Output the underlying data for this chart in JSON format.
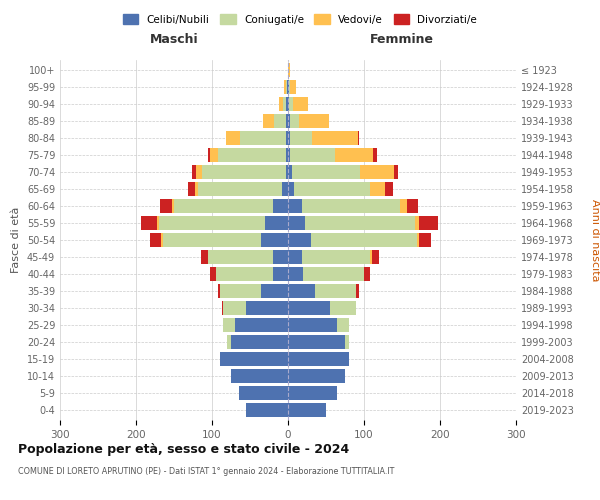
{
  "age_groups": [
    "0-4",
    "5-9",
    "10-14",
    "15-19",
    "20-24",
    "25-29",
    "30-34",
    "35-39",
    "40-44",
    "45-49",
    "50-54",
    "55-59",
    "60-64",
    "65-69",
    "70-74",
    "75-79",
    "80-84",
    "85-89",
    "90-94",
    "95-99",
    "100+"
  ],
  "birth_years": [
    "2019-2023",
    "2014-2018",
    "2009-2013",
    "2004-2008",
    "1999-2003",
    "1994-1998",
    "1989-1993",
    "1984-1988",
    "1979-1983",
    "1974-1978",
    "1969-1973",
    "1964-1968",
    "1959-1963",
    "1954-1958",
    "1949-1953",
    "1944-1948",
    "1939-1943",
    "1934-1938",
    "1929-1933",
    "1924-1928",
    "≤ 1923"
  ],
  "males": {
    "celibi": [
      55,
      65,
      75,
      90,
      75,
      70,
      55,
      35,
      20,
      20,
      35,
      30,
      20,
      8,
      3,
      2,
      3,
      3,
      2,
      1,
      0
    ],
    "coniugati": [
      0,
      0,
      0,
      0,
      5,
      15,
      30,
      55,
      75,
      85,
      130,
      140,
      130,
      110,
      110,
      90,
      60,
      15,
      5,
      2,
      0
    ],
    "vedovi": [
      0,
      0,
      0,
      0,
      0,
      0,
      0,
      0,
      0,
      0,
      2,
      2,
      3,
      5,
      8,
      10,
      18,
      15,
      5,
      2,
      0
    ],
    "divorziati": [
      0,
      0,
      0,
      0,
      0,
      0,
      2,
      2,
      8,
      10,
      15,
      22,
      15,
      8,
      5,
      3,
      0,
      0,
      0,
      0,
      0
    ]
  },
  "females": {
    "nubili": [
      50,
      65,
      75,
      80,
      75,
      65,
      55,
      35,
      20,
      18,
      30,
      22,
      18,
      8,
      5,
      2,
      2,
      2,
      1,
      1,
      0
    ],
    "coniugate": [
      0,
      0,
      0,
      0,
      5,
      15,
      35,
      55,
      80,
      90,
      140,
      145,
      130,
      100,
      90,
      60,
      30,
      12,
      5,
      2,
      0
    ],
    "vedove": [
      0,
      0,
      0,
      0,
      0,
      0,
      0,
      0,
      0,
      2,
      3,
      5,
      8,
      20,
      45,
      50,
      60,
      40,
      20,
      8,
      2
    ],
    "divorziate": [
      0,
      0,
      0,
      0,
      0,
      0,
      0,
      3,
      8,
      10,
      15,
      25,
      15,
      10,
      5,
      5,
      2,
      0,
      0,
      0,
      0
    ]
  },
  "colors": {
    "celibi": "#4e72b0",
    "coniugati": "#c5d9a0",
    "vedovi": "#ffc050",
    "divorziati": "#cc2222"
  },
  "xlim": 300,
  "title": "Popolazione per età, sesso e stato civile - 2024",
  "subtitle": "COMUNE DI LORETO APRUTINO (PE) - Dati ISTAT 1° gennaio 2024 - Elaborazione TUTTITALIA.IT",
  "ylabel": "Fasce di età",
  "ylabel_right": "Anni di nascita",
  "bg_color": "#ffffff",
  "grid_color": "#cccccc",
  "legend_labels": [
    "Celibi/Nubili",
    "Coniugati/e",
    "Vedovi/e",
    "Divorziati/e"
  ]
}
